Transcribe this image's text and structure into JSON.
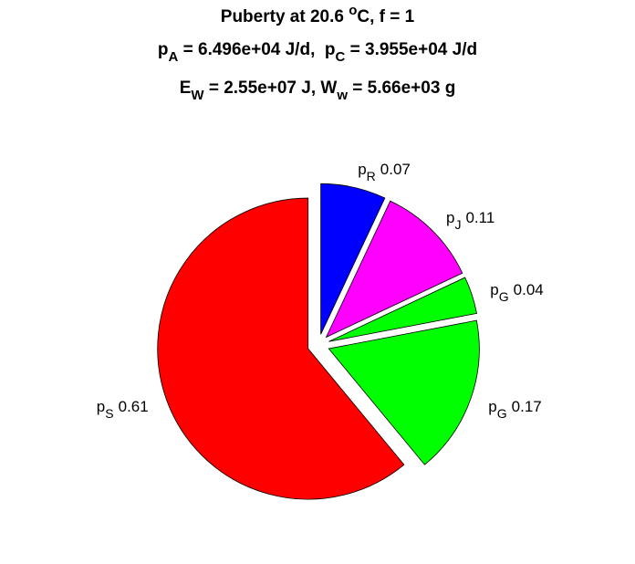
{
  "chart_data": {
    "type": "pie",
    "title": [
      [
        "Puberty at 20.6 ",
        {
          "sup": "o"
        },
        "C, f = 1"
      ],
      [
        "p",
        {
          "sub": "A"
        },
        " = 6.496e+04 J/d,  p",
        {
          "sub": "C"
        },
        " = 3.955e+04 J/d"
      ],
      [
        "E",
        {
          "sub": "W"
        },
        " = 2.55e+07 J, W",
        {
          "sub": "w"
        },
        " = 5.66e+03 g"
      ]
    ],
    "categories": [
      {
        "base": "p",
        "sub": "R"
      },
      {
        "base": "p",
        "sub": "J"
      },
      {
        "base": "p",
        "sub": "G"
      },
      {
        "base": "p",
        "sub": "G"
      },
      {
        "base": "p",
        "sub": "S"
      }
    ],
    "values": [
      0.07,
      0.11,
      0.04,
      0.17,
      0.61
    ],
    "colors": [
      "#0000ff",
      "#ff00ff",
      "#00ff00",
      "#00ff00",
      "#ff0000"
    ],
    "explode": true
  }
}
